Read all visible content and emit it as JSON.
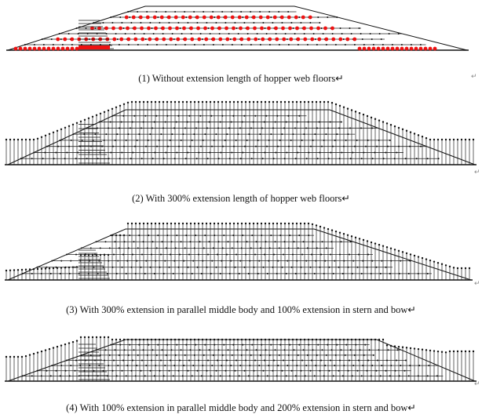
{
  "figures": [
    {
      "caption": "(1) Without extension length of hopper web floors↵",
      "mark": "↵"
    },
    {
      "caption": "(2) With 300% extension length of hopper web floors↵",
      "mark": "↵"
    },
    {
      "caption": "(3) With 300% extension in parallel middle body and 100% extension in stern and bow↵",
      "mark": "↵"
    },
    {
      "caption": "(4) With 100% extension in parallel middle body and 200% extension in stern and bow↵",
      "mark": "↵"
    }
  ]
}
